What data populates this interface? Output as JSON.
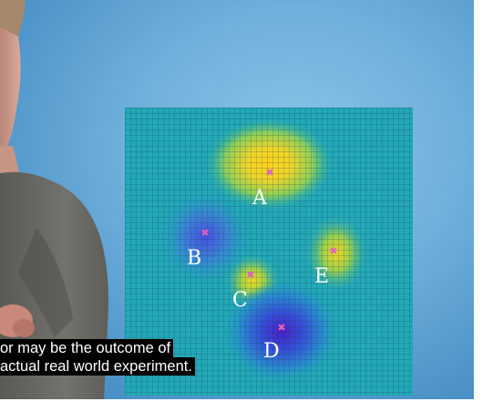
{
  "heatmap": {
    "labels": [
      {
        "id": "A",
        "text": "A"
      },
      {
        "id": "B",
        "text": "B"
      },
      {
        "id": "C",
        "text": "C"
      },
      {
        "id": "D",
        "text": "D"
      },
      {
        "id": "E",
        "text": "E"
      }
    ],
    "label_color": "#ffffff",
    "marker_color": "#e060c0"
  },
  "subtitles": {
    "line1": "or may be the outcome of",
    "line2": "actual real world experiment."
  }
}
